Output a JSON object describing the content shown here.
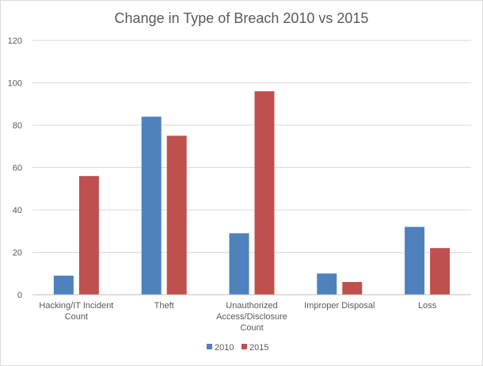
{
  "chart_data": {
    "type": "bar",
    "title": "Change in Type of Breach 2010 vs 2015",
    "xlabel": "",
    "ylabel": "",
    "ylim": [
      0,
      120
    ],
    "yticks": [
      0,
      20,
      40,
      60,
      80,
      100,
      120
    ],
    "grid": true,
    "legend_position": "bottom",
    "categories": [
      [
        "Hacking/IT Incident",
        "Count"
      ],
      [
        "Theft"
      ],
      [
        "Unauthorized",
        "Access/Disclosure",
        "Count"
      ],
      [
        "Improper Disposal"
      ],
      [
        "Loss"
      ]
    ],
    "series": [
      {
        "name": "2010",
        "color": "#4f81bd",
        "values": [
          9,
          84,
          29,
          10,
          32
        ]
      },
      {
        "name": "2015",
        "color": "#c0504d",
        "values": [
          56,
          75,
          96,
          6,
          22
        ]
      }
    ]
  }
}
